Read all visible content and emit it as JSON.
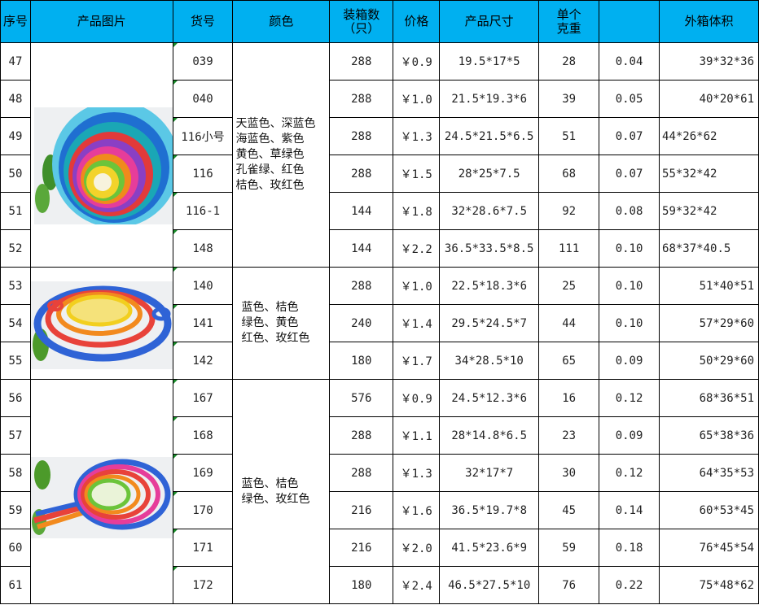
{
  "headers": {
    "seq": "序号",
    "image": "产品图片",
    "code": "货号",
    "color": "颜色",
    "qty": "装箱数（只）",
    "price": "价格",
    "size": "产品尺寸",
    "weight": "单个克重",
    "blank": "",
    "volume": "外箱体积"
  },
  "groups": [
    {
      "colors": "天蓝色、深蓝色\n海蓝色、紫色\n黄色、草绿色\n孔雀绿、红色\n桔色、玫红色",
      "image_icon": "nested-bowls-photo"
    },
    {
      "colors": "蓝色、桔色\n绿色、黄色\n红色、玫红色",
      "image_icon": "strainer-rings-photo"
    },
    {
      "colors": "蓝色、桔色\n绿色、玫红色",
      "image_icon": "handled-sieves-photo"
    }
  ],
  "rows": [
    {
      "seq": "47",
      "code": "039",
      "qty": "288",
      "price": "￥0.9",
      "size": "19.5*17*5",
      "weight": "28",
      "ratio": "0.04",
      "volume": "39*32*36"
    },
    {
      "seq": "48",
      "code": "040",
      "qty": "288",
      "price": "￥1.0",
      "size": "21.5*19.3*6",
      "weight": "39",
      "ratio": "0.05",
      "volume": "40*20*61"
    },
    {
      "seq": "49",
      "code": "116小号",
      "qty": "288",
      "price": "￥1.3",
      "size": "24.5*21.5*6.5",
      "weight": "51",
      "ratio": "0.07",
      "volume": "44*26*62"
    },
    {
      "seq": "50",
      "code": "116",
      "qty": "288",
      "price": "￥1.5",
      "size": "28*25*7.5",
      "weight": "68",
      "ratio": "0.07",
      "volume": "55*32*42"
    },
    {
      "seq": "51",
      "code": "116-1",
      "qty": "144",
      "price": "￥1.8",
      "size": "32*28.6*7.5",
      "weight": "92",
      "ratio": "0.08",
      "volume": "59*32*42"
    },
    {
      "seq": "52",
      "code": "148",
      "qty": "144",
      "price": "￥2.2",
      "size": "36.5*33.5*8.5",
      "weight": "111",
      "ratio": "0.10",
      "volume": "68*37*40.5"
    },
    {
      "seq": "53",
      "code": "140",
      "qty": "288",
      "price": "￥1.0",
      "size": "22.5*18.3*6",
      "weight": "25",
      "ratio": "0.10",
      "volume": "51*40*51"
    },
    {
      "seq": "54",
      "code": "141",
      "qty": "240",
      "price": "￥1.4",
      "size": "29.5*24.5*7",
      "weight": "44",
      "ratio": "0.10",
      "volume": "57*29*60"
    },
    {
      "seq": "55",
      "code": "142",
      "qty": "180",
      "price": "￥1.7",
      "size": "34*28.5*10",
      "weight": "65",
      "ratio": "0.09",
      "volume": "50*29*60"
    },
    {
      "seq": "56",
      "code": "167",
      "qty": "576",
      "price": "￥0.9",
      "size": "24.5*12.3*6",
      "weight": "16",
      "ratio": "0.12",
      "volume": "68*36*51"
    },
    {
      "seq": "57",
      "code": "168",
      "qty": "288",
      "price": "￥1.1",
      "size": "28*14.8*6.5",
      "weight": "23",
      "ratio": "0.09",
      "volume": "65*38*36"
    },
    {
      "seq": "58",
      "code": "169",
      "qty": "288",
      "price": "￥1.3",
      "size": "32*17*7",
      "weight": "30",
      "ratio": "0.12",
      "volume": "64*35*53"
    },
    {
      "seq": "59",
      "code": "170",
      "qty": "216",
      "price": "￥1.6",
      "size": "36.5*19.7*8",
      "weight": "45",
      "ratio": "0.14",
      "volume": "60*53*45"
    },
    {
      "seq": "60",
      "code": "171",
      "qty": "216",
      "price": "￥2.0",
      "size": "41.5*23.6*9",
      "weight": "59",
      "ratio": "0.18",
      "volume": "76*45*54"
    },
    {
      "seq": "61",
      "code": "172",
      "qty": "180",
      "price": "￥2.4",
      "size": "46.5*27.5*10",
      "weight": "76",
      "ratio": "0.22",
      "volume": "75*48*62"
    }
  ],
  "colors": {
    "header_bg": "#00b0f0",
    "grid": "#000000",
    "corner_marker": "#1a8c2a"
  }
}
